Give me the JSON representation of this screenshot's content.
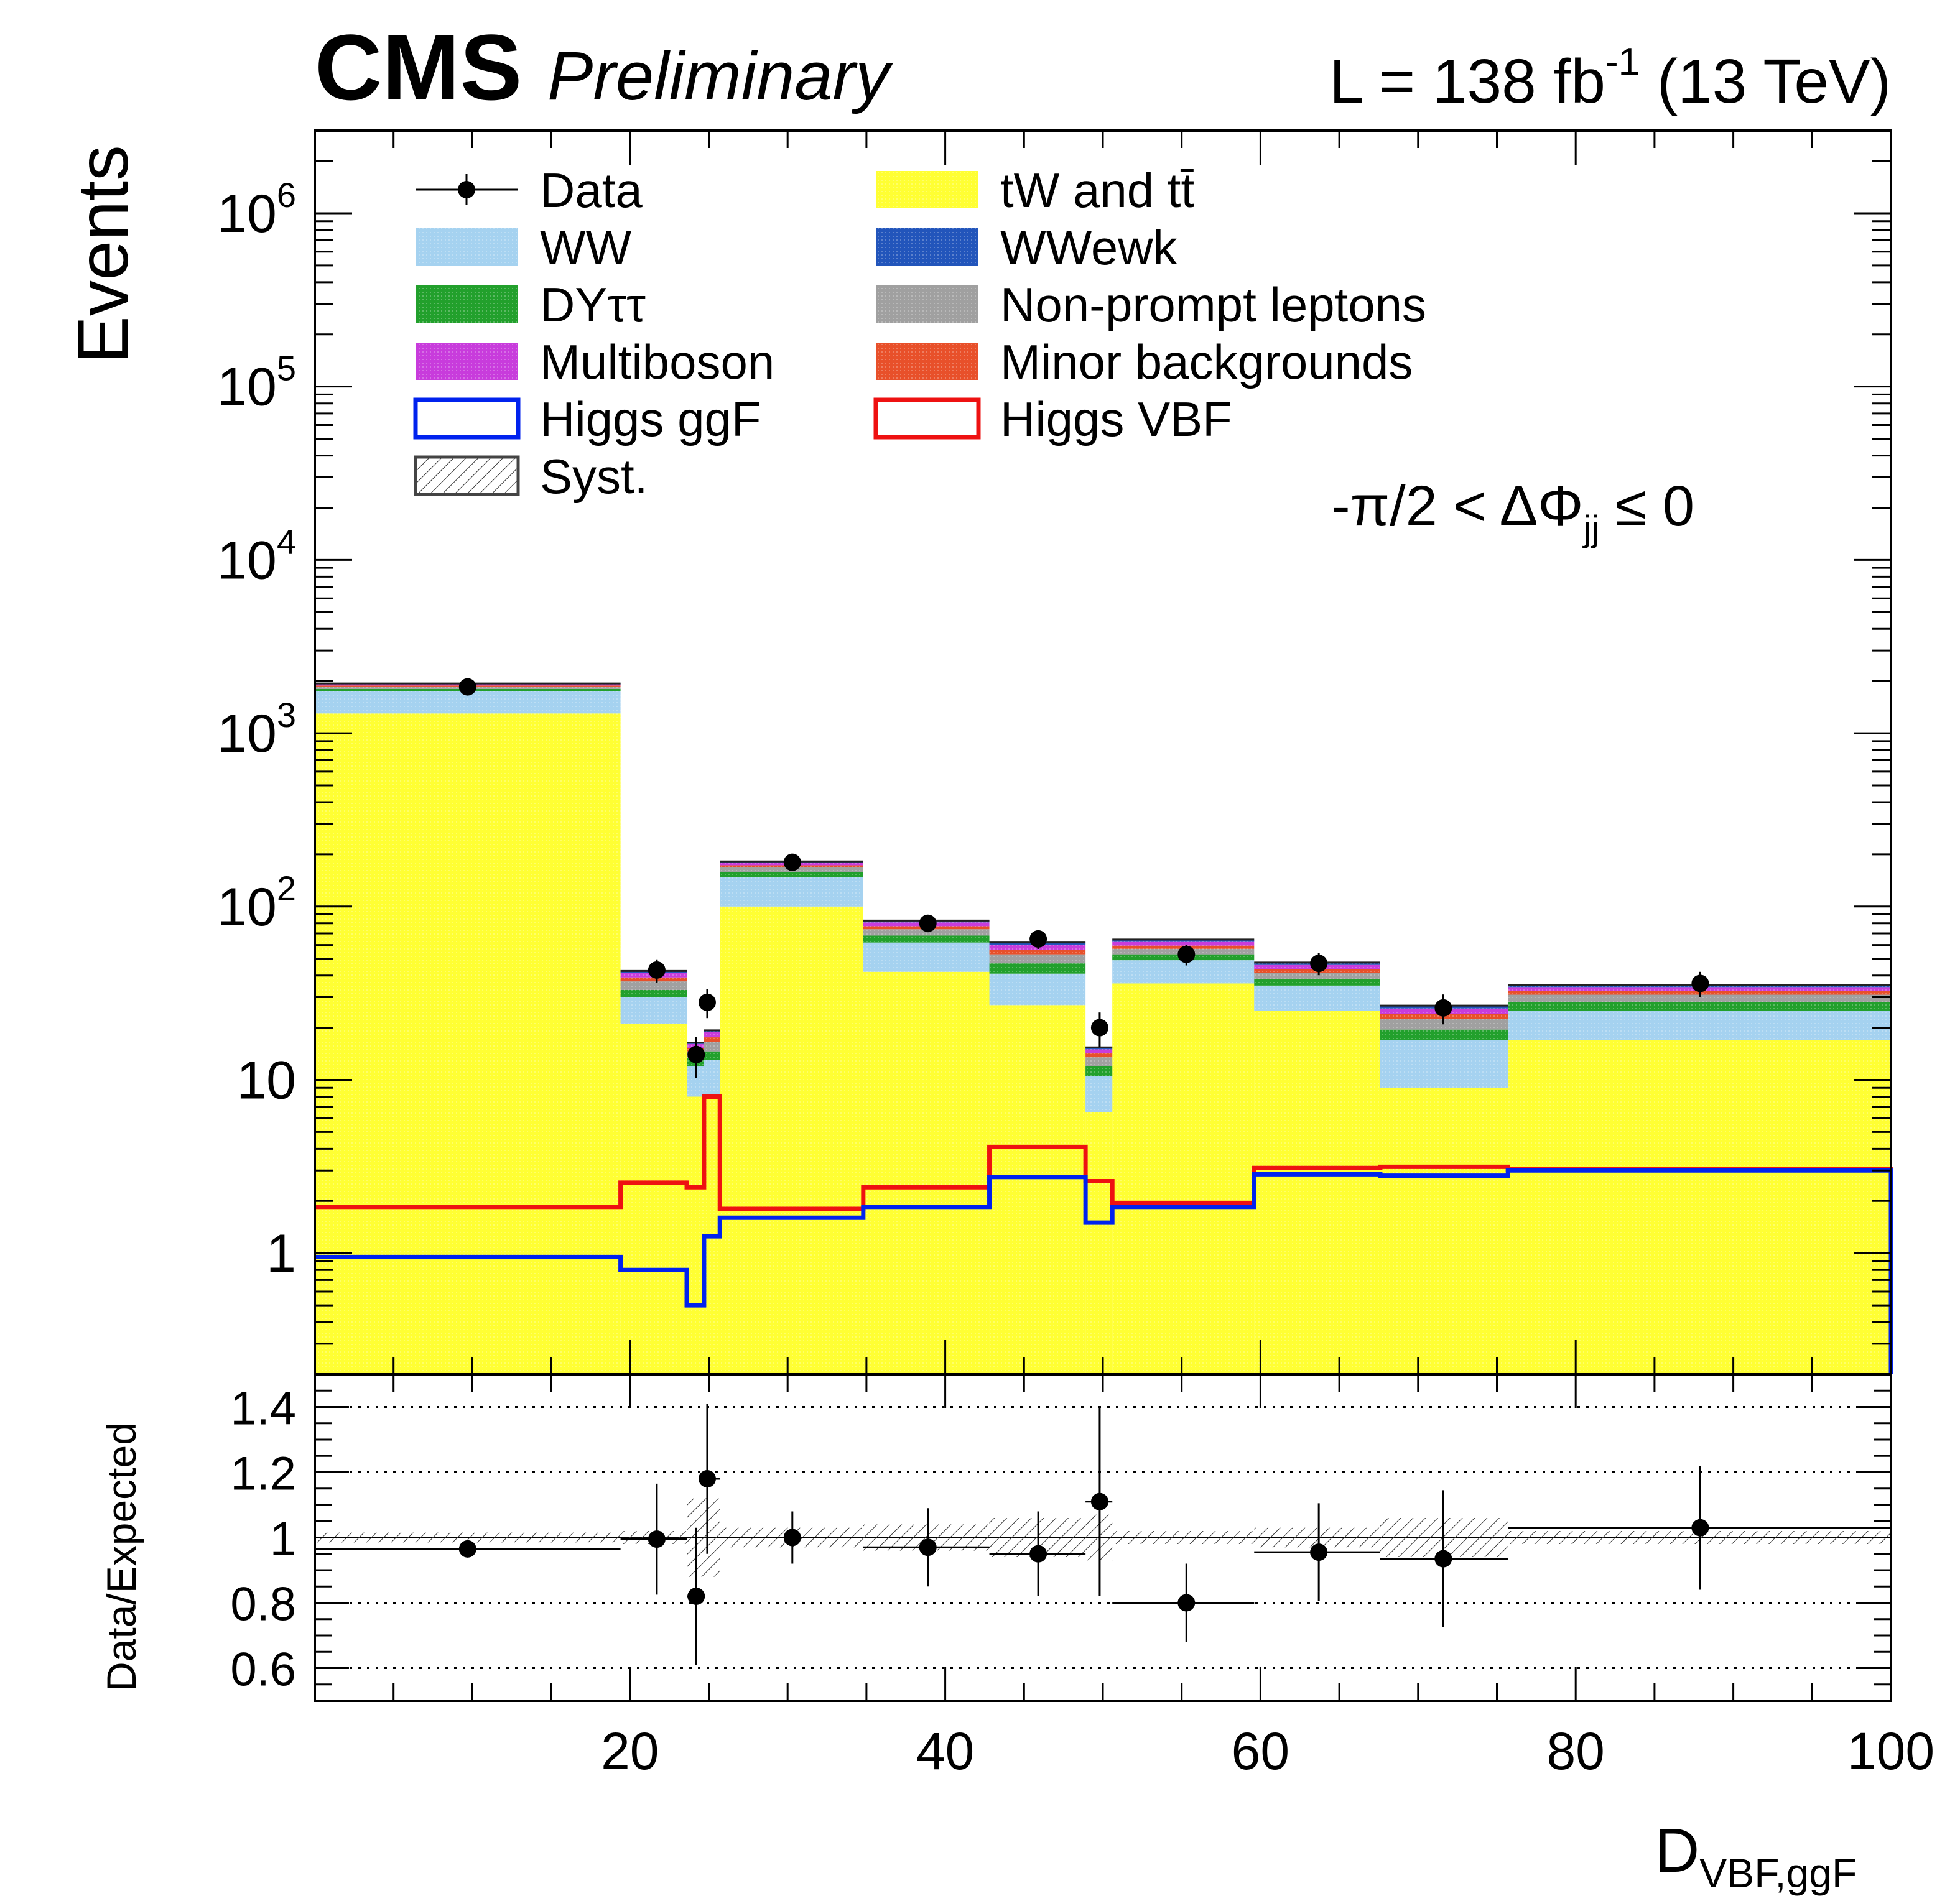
{
  "header": {
    "experiment": "CMS",
    "status": "Preliminary",
    "lumi_prefix": "L = 138 fb",
    "lumi_exp": "-1",
    "lumi_suffix": " (13 TeV)"
  },
  "region_label": {
    "prefix": "-π/2 < ΔΦ",
    "sub": "jj",
    "suffix": " ≤ 0"
  },
  "colors": {
    "tw_tt": "#ffff33",
    "ww": "#a5d2f0",
    "dy": "#22a02c",
    "multiboson": "#c83cdc",
    "higgs_ggf": "#0022ee",
    "higgs_vbf": "#ee1111",
    "wwewk": "#2255bb",
    "nonprompt": "#a0a0a0",
    "minor": "#e8502a",
    "data": "#000000"
  },
  "legend": {
    "col1": [
      {
        "key": "data",
        "label": "Data"
      },
      {
        "key": "ww",
        "label": "WW"
      },
      {
        "key": "dy",
        "label": "DYττ"
      },
      {
        "key": "multiboson",
        "label": "Multiboson"
      },
      {
        "key": "higgs_ggf",
        "label": "Higgs ggF"
      },
      {
        "key": "syst",
        "label": "Syst."
      }
    ],
    "col2": [
      {
        "key": "tw_tt",
        "label": "tW and tt̄"
      },
      {
        "key": "wwewk",
        "label": "WWewk"
      },
      {
        "key": "nonprompt",
        "label": "Non-prompt leptons"
      },
      {
        "key": "minor",
        "label": "Minor backgrounds"
      },
      {
        "key": "higgs_vbf",
        "label": "Higgs VBF"
      }
    ]
  },
  "chart_data": [
    {
      "type": "bar",
      "subtype": "stacked-histogram-log",
      "ylabel": "Events",
      "yscale": "log",
      "ylim": [
        0.2,
        3000000
      ],
      "xlim": [
        0,
        100
      ],
      "y_tick_labels": [
        "1",
        "10",
        "10^2",
        "10^3",
        "10^4",
        "10^5",
        "10^6"
      ],
      "bin_edges": [
        0,
        19.4,
        23.6,
        24.7,
        25.7,
        34.8,
        42.8,
        48.9,
        50.6,
        59.6,
        67.6,
        75.7,
        100
      ],
      "series": [
        {
          "name": "tW and tt̄",
          "values": [
            1300,
            21,
            8,
            8,
            100,
            42,
            27,
            6.5,
            36,
            25,
            9,
            17
          ]
        },
        {
          "name": "WW",
          "values": [
            450,
            9,
            4,
            5,
            48,
            20,
            14,
            4,
            13,
            10,
            8,
            8
          ]
        },
        {
          "name": "DYττ",
          "values": [
            50,
            3,
            1.3,
            1.6,
            10,
            6,
            6,
            1.5,
            4,
            3,
            2.5,
            3
          ]
        },
        {
          "name": "Non-prompt leptons",
          "values": [
            60,
            4,
            1.3,
            2,
            10,
            6,
            6,
            1.5,
            4,
            3.5,
            3,
            3
          ]
        },
        {
          "name": "Minor backgrounds",
          "values": [
            25,
            2,
            0.7,
            1,
            5,
            3,
            3,
            0.7,
            2.5,
            2,
            1.5,
            1.5
          ]
        },
        {
          "name": "Multiboson",
          "values": [
            30,
            2.5,
            0.8,
            1.3,
            6,
            4,
            4,
            0.8,
            3,
            2.5,
            1.8,
            1.8
          ]
        },
        {
          "name": "WWewk",
          "values": [
            20,
            1,
            0.3,
            0.4,
            3,
            2,
            2,
            0.4,
            2,
            1.5,
            1,
            1
          ]
        }
      ],
      "overlays": [
        {
          "name": "Higgs ggF",
          "values": [
            0.95,
            0.8,
            0.5,
            1.25,
            1.6,
            1.85,
            2.75,
            1.5,
            1.85,
            2.85,
            2.8,
            3.0
          ]
        },
        {
          "name": "Higgs VBF",
          "values": [
            1.85,
            2.55,
            2.4,
            8.0,
            1.8,
            2.4,
            4.1,
            2.6,
            1.95,
            3.1,
            3.15,
            3.05
          ]
        }
      ],
      "data": {
        "x": [
          9.7,
          21.7,
          24.2,
          24.9,
          30.3,
          38.9,
          45.9,
          49.8,
          55.3,
          63.7,
          71.6,
          87.9
        ],
        "y": [
          1850,
          43,
          14,
          28,
          180,
          80,
          65,
          20,
          53,
          47,
          26,
          36
        ]
      },
      "legend": "top-left"
    },
    {
      "type": "scatter",
      "ylabel": "Data/Expected",
      "xlabel": "D_VBF,ggF",
      "ylim": [
        0.5,
        1.5
      ],
      "xlim": [
        0,
        100
      ],
      "y_ticks": [
        0.6,
        0.8,
        1,
        1.2,
        1.4
      ],
      "y_tick_labels": [
        "0.6",
        "0.8",
        "1",
        "1.2",
        "1.4"
      ],
      "x_ticks": [
        20,
        40,
        60,
        80,
        100
      ],
      "x_tick_labels": [
        "20",
        "40",
        "60",
        "80",
        "100"
      ],
      "gridlines_y": [
        0.6,
        0.8,
        1.0,
        1.2,
        1.4
      ],
      "points": {
        "x": [
          9.7,
          21.7,
          24.2,
          24.9,
          30.3,
          38.9,
          45.9,
          49.8,
          55.3,
          63.7,
          71.6,
          87.9
        ],
        "y": [
          0.965,
          0.995,
          0.82,
          1.18,
          1.0,
          0.97,
          0.95,
          1.11,
          0.8,
          0.955,
          0.935,
          1.03
        ],
        "y_err": [
          0.02,
          0.17,
          0.21,
          0.23,
          0.08,
          0.12,
          0.13,
          0.29,
          0.12,
          0.15,
          0.21,
          0.19
        ],
        "x_lo": [
          0,
          19.4,
          23.6,
          24.7,
          25.7,
          34.8,
          42.8,
          48.9,
          50.6,
          59.6,
          67.6,
          75.7
        ],
        "x_hi": [
          19.4,
          23.6,
          24.7,
          25.7,
          34.8,
          42.8,
          48.9,
          50.6,
          59.6,
          67.6,
          75.7,
          100
        ]
      },
      "syst_band": [
        0.015,
        0.02,
        0.12,
        0.12,
        0.03,
        0.04,
        0.06,
        0.07,
        0.02,
        0.03,
        0.06,
        0.02
      ]
    }
  ]
}
